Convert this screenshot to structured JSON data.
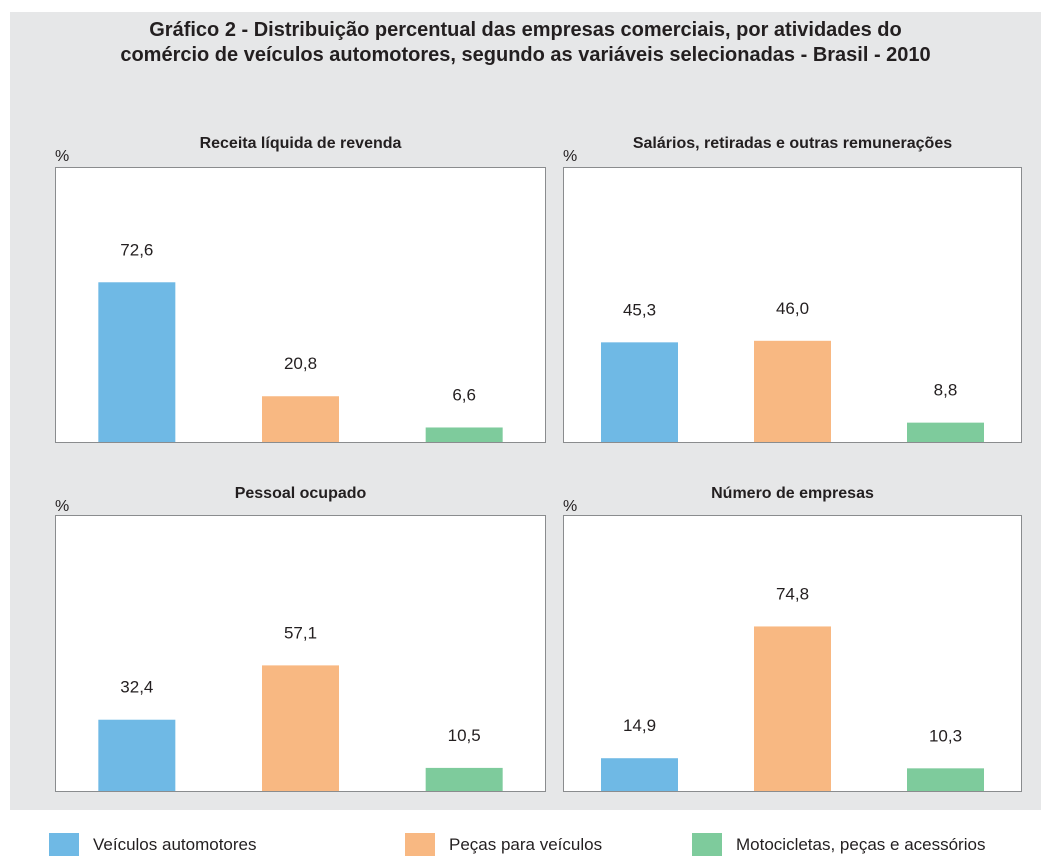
{
  "title": {
    "line1": "Gráfico 2 - Distribuição percentual das empresas comerciais, por atividades do",
    "line2": "comércio de veículos automotores, segundo as variáveis selecionadas - Brasil - 2010"
  },
  "colors": {
    "panel": "#e6e7e8",
    "Veículos automotores": "#6fb9e5",
    "Peças para veículos": "#f8b882",
    "Motocicletas, peças e acessórios": "#7ecb9c"
  },
  "legend": [
    {
      "label": "Veículos automotores",
      "color": "#6fb9e5"
    },
    {
      "label": "Peças para veículos",
      "color": "#f8b882"
    },
    {
      "label": "Motocicletas, peças e acessórios",
      "color": "#7ecb9c"
    }
  ],
  "chart_data": [
    {
      "type": "bar",
      "title": "Receita líquida de revenda",
      "unit_label": "%",
      "categories": [
        "Veículos automotores",
        "Peças para veículos",
        "Motocicletas, peças e acessórios"
      ],
      "values": [
        72.6,
        20.8,
        6.6
      ],
      "value_labels": [
        "72,6",
        "20,8",
        "6,6"
      ],
      "ylim": [
        0,
        100
      ],
      "grid": false
    },
    {
      "type": "bar",
      "title": "Salários, retiradas e outras remunerações",
      "unit_label": "%",
      "categories": [
        "Veículos automotores",
        "Peças para veículos",
        "Motocicletas, peças e acessórios"
      ],
      "values": [
        45.3,
        46.0,
        8.8
      ],
      "value_labels": [
        "45,3",
        "46,0",
        "8,8"
      ],
      "ylim": [
        0,
        100
      ],
      "grid": false
    },
    {
      "type": "bar",
      "title": "Pessoal ocupado",
      "unit_label": "%",
      "categories": [
        "Veículos automotores",
        "Peças para veículos",
        "Motocicletas, peças e acessórios"
      ],
      "values": [
        32.4,
        57.1,
        10.5
      ],
      "value_labels": [
        "32,4",
        "57,1",
        "10,5"
      ],
      "ylim": [
        0,
        100
      ],
      "grid": false
    },
    {
      "type": "bar",
      "title": "Número de empresas",
      "unit_label": "%",
      "categories": [
        "Veículos automotores",
        "Peças para veículos",
        "Motocicletas, peças e acessórios"
      ],
      "values": [
        14.9,
        74.8,
        10.3
      ],
      "value_labels": [
        "14,9",
        "74,8",
        "10,3"
      ],
      "ylim": [
        0,
        100
      ],
      "grid": false
    }
  ]
}
